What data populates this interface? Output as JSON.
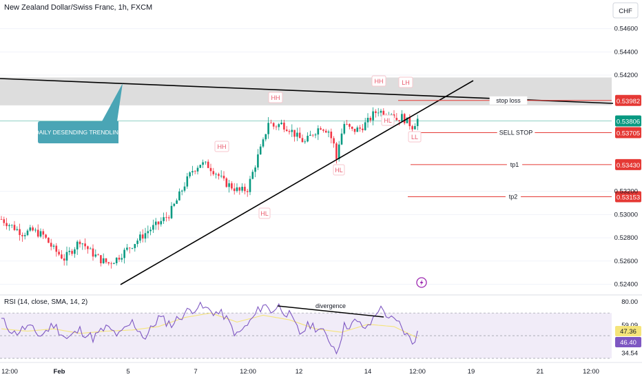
{
  "header": {
    "title": "New Zealand Dollar/Swiss Franc, 1h, FXCM",
    "currency": "CHF"
  },
  "colors": {
    "bull": "#089981",
    "bear": "#f23645",
    "level_red": "#e53935",
    "zone_gray": "#d9d9d9",
    "rsi_line": "#7e57c2",
    "rsi_ma": "#f5e47a",
    "rsi_band": "#ede7f6",
    "callout": "#4aa5b5",
    "lightning": "#9c27b0",
    "current_price": "#089981"
  },
  "chart_data": [
    {
      "type": "candlestick",
      "title": "New Zealand Dollar/Swiss Franc, 1h, FXCM",
      "ylim": [
        0.5232,
        0.5474
      ],
      "y_ticks": [
        0.546,
        0.544,
        0.542,
        0.532,
        0.53,
        0.528,
        0.526,
        0.524
      ],
      "x_ticks": [
        "12:00",
        "Feb",
        "5",
        "7",
        "12:00",
        "12",
        "14",
        "12:00",
        "19",
        "21",
        "12:00"
      ],
      "close_path": [
        [
          0,
          0.5296
        ],
        [
          4,
          0.529
        ],
        [
          8,
          0.5284
        ],
        [
          12,
          0.5286
        ],
        [
          16,
          0.5282
        ],
        [
          20,
          0.527
        ],
        [
          24,
          0.5262
        ],
        [
          28,
          0.5272
        ],
        [
          30,
          0.5278
        ],
        [
          34,
          0.5268
        ],
        [
          38,
          0.5261
        ],
        [
          41,
          0.5258
        ],
        [
          44,
          0.5262
        ],
        [
          48,
          0.527
        ],
        [
          52,
          0.5278
        ],
        [
          56,
          0.5286
        ],
        [
          60,
          0.5292
        ],
        [
          64,
          0.53
        ],
        [
          67,
          0.5312
        ],
        [
          70,
          0.5326
        ],
        [
          73,
          0.5338
        ],
        [
          76,
          0.5344
        ],
        [
          79,
          0.5342
        ],
        [
          82,
          0.5336
        ],
        [
          85,
          0.5328
        ],
        [
          88,
          0.5324
        ],
        [
          91,
          0.532
        ],
        [
          94,
          0.5322
        ],
        [
          96,
          0.5336
        ],
        [
          98,
          0.535
        ],
        [
          100,
          0.5362
        ],
        [
          102,
          0.538
        ],
        [
          104,
          0.5376
        ],
        [
          107,
          0.5378
        ],
        [
          110,
          0.5374
        ],
        [
          113,
          0.5367
        ],
        [
          116,
          0.5362
        ],
        [
          119,
          0.537
        ],
        [
          122,
          0.5376
        ],
        [
          125,
          0.5372
        ],
        [
          127,
          0.536
        ],
        [
          128,
          0.5348
        ],
        [
          129,
          0.5362
        ],
        [
          131,
          0.5378
        ],
        [
          134,
          0.5372
        ],
        [
          137,
          0.5374
        ],
        [
          140,
          0.538
        ],
        [
          142,
          0.5386
        ],
        [
          144,
          0.539
        ],
        [
          147,
          0.5386
        ],
        [
          149,
          0.5388
        ],
        [
          151,
          0.5382
        ],
        [
          153,
          0.5384
        ],
        [
          155,
          0.538
        ],
        [
          157,
          0.5376
        ],
        [
          159,
          0.5382
        ]
      ],
      "candles_shown": 160
    },
    {
      "type": "line",
      "title": "RSI (14, close, SMA, 14, 2)",
      "ylim": [
        30.0,
        83.5
      ],
      "y_ticks": [
        80.0,
        59.09,
        34.54
      ],
      "rsi_path": [
        [
          0,
          64
        ],
        [
          5,
          52
        ],
        [
          10,
          58
        ],
        [
          15,
          50
        ],
        [
          20,
          60
        ],
        [
          25,
          47
        ],
        [
          30,
          55
        ],
        [
          35,
          48
        ],
        [
          40,
          57
        ],
        [
          45,
          50
        ],
        [
          50,
          62
        ],
        [
          55,
          48
        ],
        [
          60,
          66
        ],
        [
          65,
          60
        ],
        [
          70,
          70
        ],
        [
          75,
          76
        ],
        [
          80,
          72
        ],
        [
          85,
          68
        ],
        [
          90,
          50
        ],
        [
          95,
          62
        ],
        [
          100,
          78
        ],
        [
          103,
          72
        ],
        [
          106,
          76
        ],
        [
          110,
          68
        ],
        [
          114,
          52
        ],
        [
          118,
          60
        ],
        [
          122,
          55
        ],
        [
          126,
          44
        ],
        [
          128,
          36
        ],
        [
          131,
          58
        ],
        [
          135,
          62
        ],
        [
          140,
          56
        ],
        [
          144,
          74
        ],
        [
          146,
          72
        ],
        [
          149,
          64
        ],
        [
          152,
          60
        ],
        [
          155,
          50
        ],
        [
          157,
          44
        ],
        [
          159,
          52
        ]
      ],
      "ma_path": [
        [
          0,
          56
        ],
        [
          10,
          54
        ],
        [
          20,
          56
        ],
        [
          30,
          52
        ],
        [
          40,
          54
        ],
        [
          50,
          55
        ],
        [
          60,
          58
        ],
        [
          70,
          66
        ],
        [
          80,
          70
        ],
        [
          90,
          62
        ],
        [
          100,
          68
        ],
        [
          110,
          64
        ],
        [
          120,
          56
        ],
        [
          130,
          53
        ],
        [
          140,
          60
        ],
        [
          150,
          58
        ],
        [
          159,
          48
        ]
      ]
    }
  ],
  "price_axis": {
    "current_price": "0.53806",
    "levels": [
      {
        "label": "stop loss",
        "price": 0.53982,
        "tag": "0.53982"
      },
      {
        "label": "SELL STOP",
        "price": 0.53705,
        "tag": "0.53705"
      },
      {
        "label": "tp1",
        "price": 0.5343,
        "tag": "0.53430"
      },
      {
        "label": "tp2",
        "price": 0.53153,
        "tag": "0.53153"
      }
    ]
  },
  "annotations": {
    "callout": "DAILY DESENDING TRENDLINE",
    "pattern_labels": [
      "HH",
      "HH",
      "HH",
      "LH",
      "HL",
      "HL",
      "HL",
      "LL"
    ],
    "divergence": "divergence"
  },
  "rsi_panel": {
    "label": "RSI (14, close, SMA, 14, 2)",
    "tags": [
      "47.36",
      "46.40"
    ]
  }
}
